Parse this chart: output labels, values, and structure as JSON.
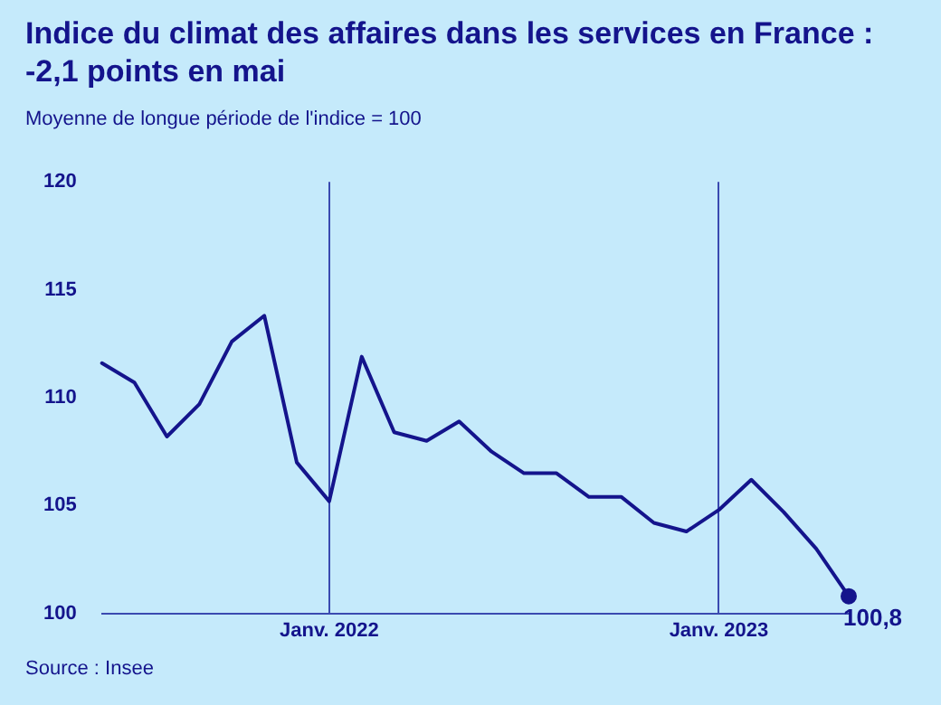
{
  "chart_data": {
    "type": "line",
    "title": "Indice du climat des affaires dans les services en France : -2,1 points en mai",
    "subtitle": "Moyenne de longue période de l'indice = 100",
    "x": [
      "2021-06",
      "2021-07",
      "2021-08",
      "2021-09",
      "2021-10",
      "2021-11",
      "2021-12",
      "2022-01",
      "2022-02",
      "2022-03",
      "2022-04",
      "2022-05",
      "2022-06",
      "2022-07",
      "2022-08",
      "2022-09",
      "2022-10",
      "2022-11",
      "2022-12",
      "2023-01",
      "2023-02",
      "2023-03",
      "2023-04",
      "2023-05"
    ],
    "series": [
      {
        "color": "#14148c",
        "values": [
          111.6,
          110.7,
          108.2,
          109.7,
          112.6,
          113.8,
          107.0,
          105.2,
          111.9,
          108.4,
          108.0,
          108.9,
          107.5,
          106.5,
          106.5,
          105.4,
          105.4,
          104.2,
          103.8,
          104.8,
          106.2,
          104.7,
          103.0,
          100.8
        ],
        "value_labels": [
          null,
          null,
          null,
          null,
          null,
          null,
          null,
          null,
          null,
          null,
          null,
          null,
          null,
          null,
          null,
          null,
          null,
          null,
          null,
          null,
          null,
          null,
          null,
          "100,8"
        ]
      }
    ],
    "xlim": [
      "2021-06",
      "2023-05"
    ],
    "xticks": [
      {
        "value": "2022-01",
        "label": "Janv. 2022"
      },
      {
        "value": "2023-01",
        "label": "Janv. 2023"
      }
    ],
    "ylim": [
      100,
      120
    ],
    "yticks": [
      100,
      105,
      110,
      115,
      120
    ],
    "grid": "x",
    "marker": "none",
    "line_style": "solid",
    "annotations": [
      "Source : Insee"
    ]
  }
}
